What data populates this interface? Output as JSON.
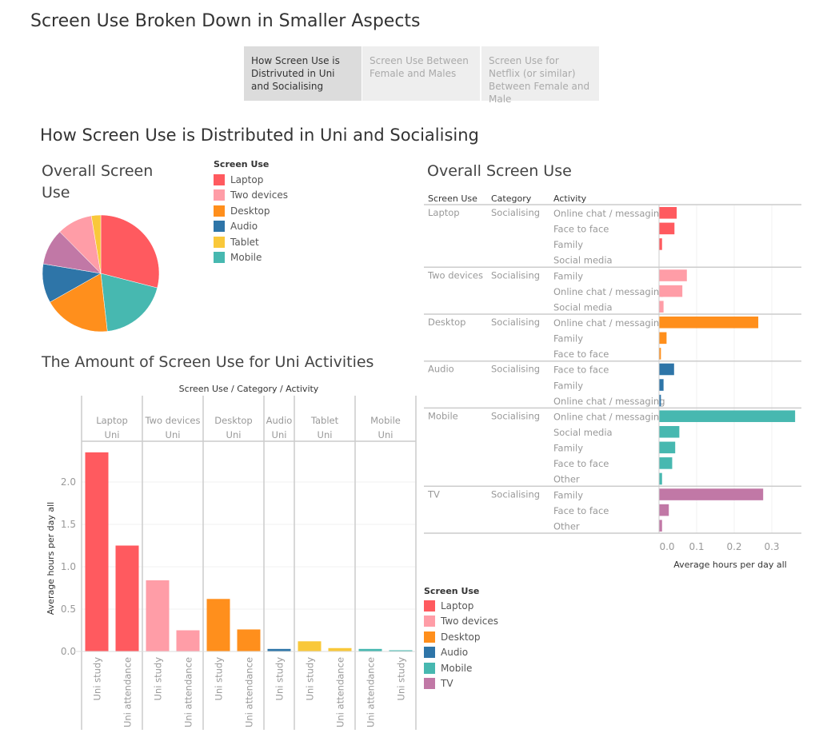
{
  "header": {
    "title": "Screen Use Broken Down in Smaller Aspects"
  },
  "tabs": [
    {
      "label": "How Screen Use is Distrivuted in Uni and Socialising",
      "active": true
    },
    {
      "label": "Screen Use Between Female and Males",
      "active": false
    },
    {
      "label": "Screen Use for Netflix (or similar) Between Female and Male",
      "active": false
    }
  ],
  "dashboard": {
    "heading": "How Screen Use is Distributed in Uni and Socialising"
  },
  "colors": {
    "Laptop": "#ff5a5f",
    "Two devices": "#ff9da7",
    "Desktop": "#ff8f1c",
    "Audio": "#2e75a8",
    "Tablet": "#f9c83a",
    "Mobile": "#47b8b0",
    "TV": "#c178a6"
  },
  "legend_top": {
    "title": "Screen Use",
    "items": [
      "Laptop",
      "Two devices",
      "Desktop",
      "Audio",
      "Tablet",
      "Mobile"
    ]
  },
  "legend_bottom": {
    "title": "Screen Use",
    "items": [
      "Laptop",
      "Two devices",
      "Desktop",
      "Audio",
      "Mobile",
      "TV"
    ]
  },
  "chart_data": [
    {
      "type": "pie",
      "title": "Overall Screen Use",
      "unit": "percent (estimated)",
      "slices": [
        {
          "label": "Laptop",
          "value": 29.0
        },
        {
          "label": "Mobile",
          "value": 19.2
        },
        {
          "label": "Desktop",
          "value": 18.6
        },
        {
          "label": "Audio",
          "value": 10.8
        },
        {
          "label": "TV",
          "value": 10.0
        },
        {
          "label": "Two devices",
          "value": 9.8
        },
        {
          "label": "Tablet",
          "value": 2.6
        }
      ]
    },
    {
      "type": "bar",
      "title": "The Amount of Screen Use for Uni Activities",
      "header": "Screen Use / Category / Activity",
      "ylabel": "Average hours per day all",
      "ylim": [
        0,
        2.5
      ],
      "yticks": [
        "0.0",
        "0.5",
        "1.0",
        "1.5",
        "2.0"
      ],
      "grid": true,
      "panels": [
        {
          "screen_use": "Laptop",
          "category": "Uni",
          "bars": [
            {
              "activity": "Uni study",
              "value": 2.35
            },
            {
              "activity": "Uni attendance",
              "value": 1.25
            }
          ]
        },
        {
          "screen_use": "Two devices",
          "category": "Uni",
          "bars": [
            {
              "activity": "Uni study",
              "value": 0.84
            },
            {
              "activity": "Uni attendance",
              "value": 0.25
            }
          ]
        },
        {
          "screen_use": "Desktop",
          "category": "Uni",
          "bars": [
            {
              "activity": "Uni study",
              "value": 0.62
            },
            {
              "activity": "Uni attendance",
              "value": 0.26
            }
          ]
        },
        {
          "screen_use": "Audio",
          "category": "Uni",
          "bars": [
            {
              "activity": "Uni study",
              "value": 0.03
            }
          ]
        },
        {
          "screen_use": "Tablet",
          "category": "Uni",
          "bars": [
            {
              "activity": "Uni study",
              "value": 0.12
            },
            {
              "activity": "Uni attendance",
              "value": 0.04
            }
          ]
        },
        {
          "screen_use": "Mobile",
          "category": "Uni",
          "bars": [
            {
              "activity": "Uni attendance",
              "value": 0.03
            },
            {
              "activity": "Uni study",
              "value": 0.01
            }
          ]
        }
      ]
    },
    {
      "type": "bar",
      "orientation": "horizontal",
      "title": "Overall Screen Use",
      "columns": [
        "Screen Use",
        "Category",
        "Activity"
      ],
      "xlabel": "Average hours per day all",
      "xlim": [
        0,
        0.37
      ],
      "xticks": [
        "0.0",
        "0.1",
        "0.2",
        "0.3"
      ],
      "grid": true,
      "groups": [
        {
          "screen_use": "Laptop",
          "category": "Socialising",
          "rows": [
            {
              "activity": "Online chat / messaging",
              "value": 0.047
            },
            {
              "activity": "Face to face",
              "value": 0.041
            },
            {
              "activity": "Family",
              "value": 0.008
            },
            {
              "activity": "Social media",
              "value": 0.0
            }
          ]
        },
        {
          "screen_use": "Two devices",
          "category": "Socialising",
          "rows": [
            {
              "activity": "Family",
              "value": 0.074
            },
            {
              "activity": "Online chat / messaging",
              "value": 0.062
            },
            {
              "activity": "Social media",
              "value": 0.012
            }
          ]
        },
        {
          "screen_use": "Desktop",
          "category": "Socialising",
          "rows": [
            {
              "activity": "Online chat / messaging",
              "value": 0.264
            },
            {
              "activity": "Family",
              "value": 0.02
            },
            {
              "activity": "Face to face",
              "value": 0.005
            }
          ]
        },
        {
          "screen_use": "Audio",
          "category": "Socialising",
          "rows": [
            {
              "activity": "Face to face",
              "value": 0.04
            },
            {
              "activity": "Family",
              "value": 0.012
            },
            {
              "activity": "Online chat / messaging",
              "value": 0.005
            }
          ]
        },
        {
          "screen_use": "Mobile",
          "category": "Socialising",
          "rows": [
            {
              "activity": "Online chat / messaging",
              "value": 0.362
            },
            {
              "activity": "Social media",
              "value": 0.054
            },
            {
              "activity": "Family",
              "value": 0.043
            },
            {
              "activity": "Face to face",
              "value": 0.035
            },
            {
              "activity": "Other",
              "value": 0.008
            }
          ]
        },
        {
          "screen_use": "TV",
          "category": "Socialising",
          "rows": [
            {
              "activity": "Family",
              "value": 0.277
            },
            {
              "activity": "Face to face",
              "value": 0.026
            },
            {
              "activity": "Other",
              "value": 0.008
            }
          ]
        }
      ]
    }
  ]
}
